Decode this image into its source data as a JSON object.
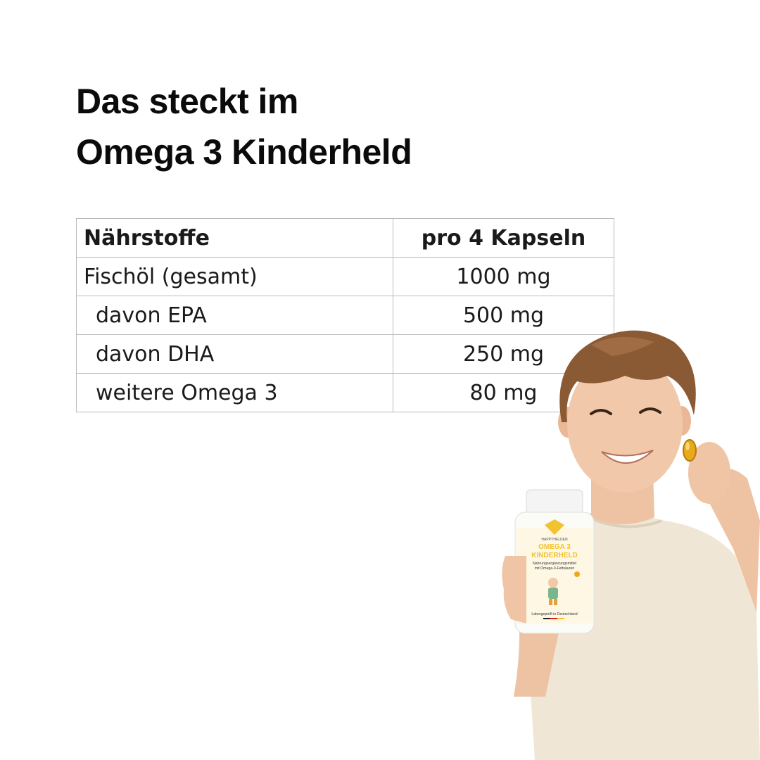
{
  "headline": {
    "line1": "Das steckt im",
    "line2": "Omega 3 Kinderheld"
  },
  "table": {
    "headers": [
      "Nährstoffe",
      "pro 4 Kapseln"
    ],
    "rows": [
      {
        "name": "Fischöl (gesamt)",
        "amount": "1000 mg"
      },
      {
        "name": "davon EPA",
        "amount": "500 mg"
      },
      {
        "name": "davon DHA",
        "amount": "250 mg"
      },
      {
        "name": "weitere Omega 3",
        "amount": "80 mg"
      }
    ]
  },
  "product": {
    "brand": "HAPPYHELDEN",
    "name_line1": "OMEGA 3",
    "name_line2": "KINDERHELD",
    "desc_line1": "Nahrungsergänzungsmittel",
    "desc_line2": "mit Omega-3-Fettsäuren",
    "footer": "Laborgeprüft in Deutschland"
  },
  "colors": {
    "text": "#0b0b0b",
    "table_border": "#b9b9b9",
    "label_yellow": "#f2c230",
    "shirt": "#efe6d6",
    "capsule": "#e8a91a"
  }
}
